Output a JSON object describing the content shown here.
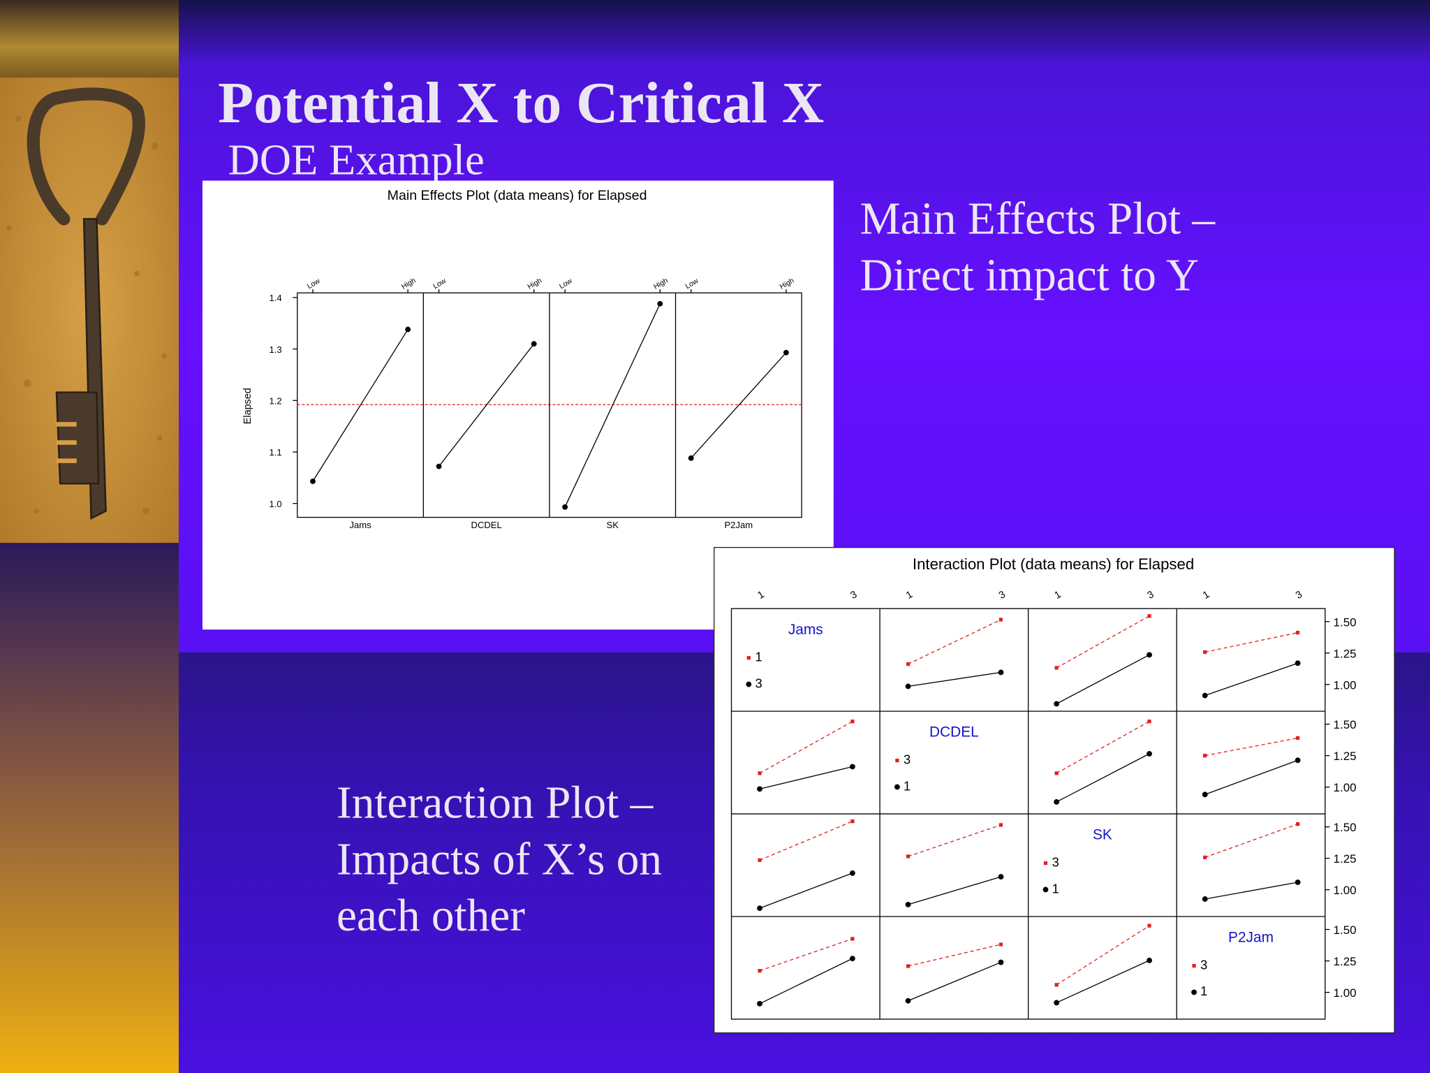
{
  "slide": {
    "title": "Potential X to Critical X",
    "subtitle": "DOE Example",
    "main_effects_note": [
      "Main Effects Plot –",
      "Direct impact to Y"
    ],
    "interaction_note": [
      "Interaction Plot –",
      "Impacts of X’s on",
      "each other"
    ]
  },
  "chart_data": [
    {
      "type": "main-effects",
      "title": "Main Effects Plot (data means) for Elapsed",
      "y_label": "Elapsed",
      "categories": [
        "Low",
        "High"
      ],
      "color": "#000000",
      "panels": [
        {
          "name": "Jams",
          "values": [
            1.043,
            1.338
          ]
        },
        {
          "name": "DCDEL",
          "values": [
            1.072,
            1.31
          ]
        },
        {
          "name": "SK",
          "values": [
            0.993,
            1.388
          ]
        },
        {
          "name": "P2Jam",
          "values": [
            1.088,
            1.293
          ]
        }
      ],
      "reference": 1.192,
      "reference_color": "#e03030",
      "ylim": [
        0.973,
        1.409
      ],
      "yticks": [
        {
          "value": 1,
          "label": "1.0"
        },
        1.1,
        1.2,
        1.3,
        1.4
      ]
    },
    {
      "type": "interaction",
      "title": "Interaction Plot (data means) for Elapsed",
      "categories": [
        "1",
        "3"
      ],
      "ylim": [
        0.787,
        1.603
      ],
      "yticks": [
        {
          "value": 1,
          "label": "1.00"
        },
        1.25,
        {
          "value": 1.5,
          "label": "1.50"
        }
      ],
      "label_color": "#1414c8",
      "rows": [
        {
          "name": "Jams",
          "series": [
            {
              "name": "1",
              "color": "#e02020",
              "dashed": true
            },
            {
              "name": "3",
              "color": "#000000",
              "dashed": false
            }
          ],
          "values": [
            null,
            [
              [
                1.162,
                1.515
              ],
              [
                0.985,
                1.096
              ]
            ],
            [
              [
                1.132,
                1.544
              ],
              [
                0.846,
                1.235
              ]
            ],
            [
              [
                1.257,
                1.412
              ],
              [
                0.912,
                1.169
              ]
            ]
          ]
        },
        {
          "name": "DCDEL",
          "series": [
            {
              "name": "3",
              "color": "#e02020",
              "dashed": true
            },
            {
              "name": "1",
              "color": "#000000",
              "dashed": false
            }
          ],
          "values": [
            [
              [
                1.11,
                1.522
              ],
              [
                0.985,
                1.162
              ]
            ],
            null,
            [
              [
                1.11,
                1.522
              ],
              [
                0.882,
                1.265
              ]
            ],
            [
              [
                1.25,
                1.39
              ],
              [
                0.941,
                1.213
              ]
            ]
          ]
        },
        {
          "name": "SK",
          "series": [
            {
              "name": "3",
              "color": "#e02020",
              "dashed": true
            },
            {
              "name": "1",
              "color": "#000000",
              "dashed": false
            }
          ],
          "values": [
            [
              [
                1.235,
                1.544
              ],
              [
                0.853,
                1.132
              ]
            ],
            [
              [
                1.265,
                1.515
              ],
              [
                0.882,
                1.103
              ]
            ],
            null,
            [
              [
                1.257,
                1.522
              ],
              [
                0.926,
                1.059
              ]
            ]
          ]
        },
        {
          "name": "P2Jam",
          "series": [
            {
              "name": "3",
              "color": "#e02020",
              "dashed": true
            },
            {
              "name": "1",
              "color": "#000000",
              "dashed": false
            }
          ],
          "values": [
            [
              [
                1.172,
                1.426
              ],
              [
                0.91,
                1.269
              ]
            ],
            [
              [
                1.209,
                1.381
              ],
              [
                0.933,
                1.239
              ]
            ],
            [
              [
                1.06,
                1.53
              ],
              [
                0.918,
                1.254
              ]
            ],
            null
          ]
        }
      ]
    }
  ]
}
